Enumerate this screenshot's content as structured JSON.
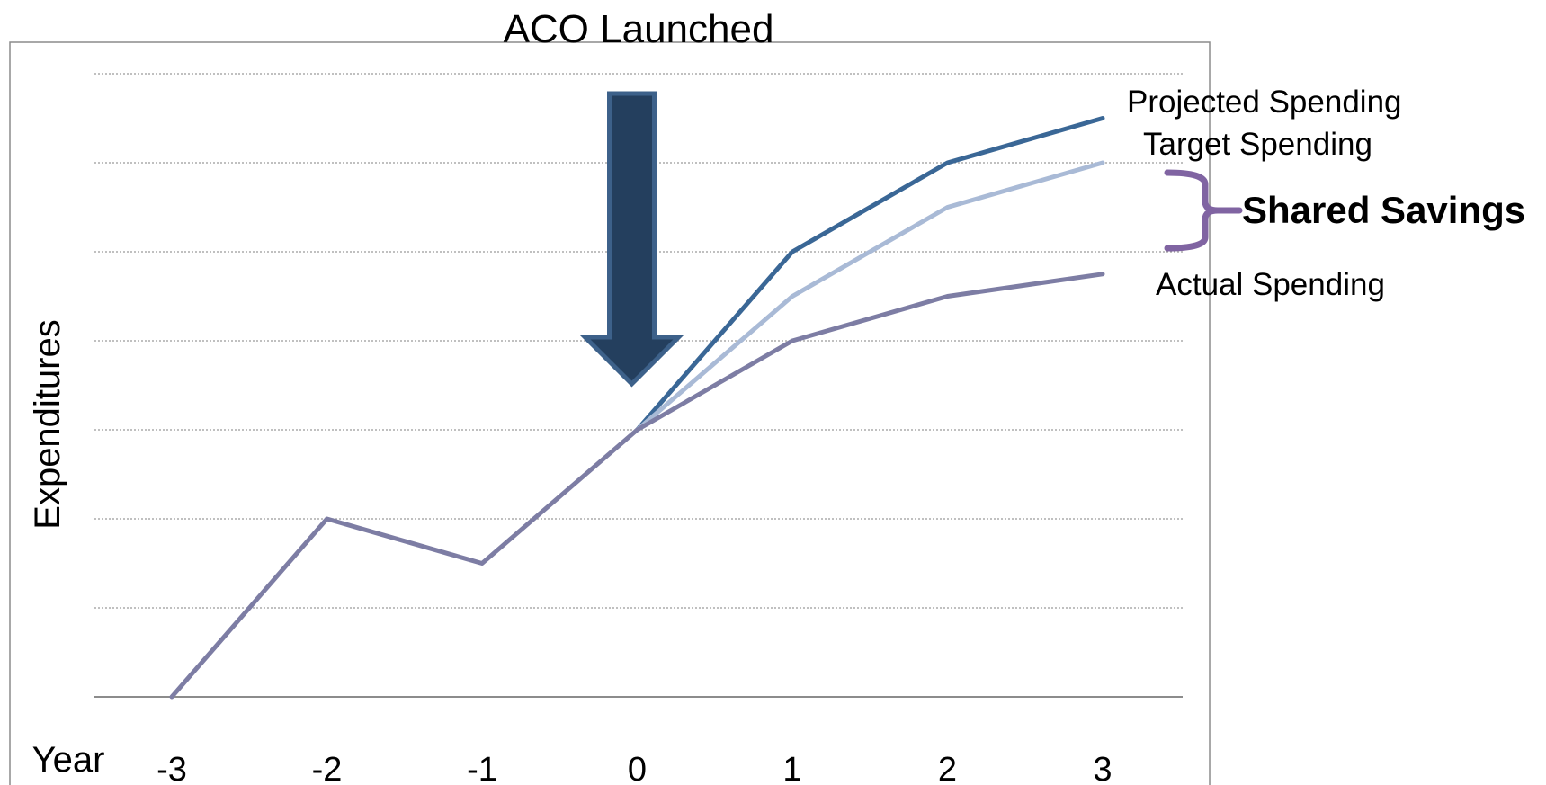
{
  "chart_data": {
    "type": "line",
    "title": "ACO Launched",
    "xlabel": "Year",
    "ylabel": "Expenditures",
    "categories": [
      "-3",
      "-2",
      "-1",
      "0",
      "1",
      "2",
      "3"
    ],
    "x": [
      -3,
      -2,
      -1,
      0,
      1,
      2,
      3
    ],
    "ylim": [
      0,
      7
    ],
    "grid": true,
    "colors": {
      "projected": "#3a6796",
      "target": "#a9bad6",
      "actual": "#7d7da4",
      "arrow_fill": "#243f5e",
      "arrow_edge": "#3d618a",
      "brace": "#8064a2",
      "grid": "#9a9a9a",
      "axis": "#8c8c8c",
      "frame": "#8c8c8c"
    },
    "series": [
      {
        "name": "Projected Spending",
        "key": "projected",
        "values": [
          null,
          null,
          null,
          3.0,
          5.0,
          6.0,
          6.5
        ]
      },
      {
        "name": "Target Spending",
        "key": "target",
        "values": [
          null,
          null,
          null,
          3.0,
          4.5,
          5.5,
          6.0
        ]
      },
      {
        "name": "Actual Spending",
        "key": "actual",
        "values": [
          0.0,
          2.0,
          1.5,
          3.0,
          4.0,
          4.5,
          4.75
        ]
      }
    ],
    "annotations": {
      "launch_arrow_at_year": 0,
      "shared_savings_label": "Shared Savings",
      "icons": {
        "arrow": "down-arrow-icon",
        "brace": "right-curly-brace-icon"
      }
    }
  }
}
